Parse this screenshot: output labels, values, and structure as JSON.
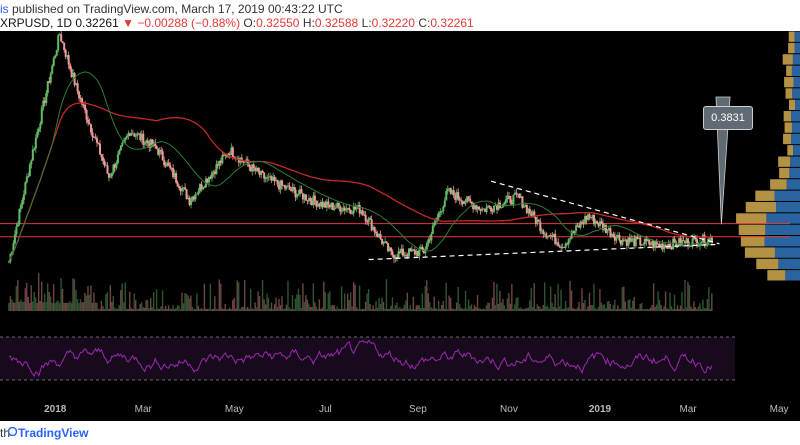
{
  "header": {
    "author": "is",
    "published_text": " published on TradingView.com, March 17, 2019 00:43:22 UTC",
    "symbol": "XRPUSD, 1D",
    "last": "0.32261",
    "change": "▼ −0.00288 (−0.88%)",
    "o_label": "O:",
    "o_value": "0.32550",
    "h_label": "H:",
    "h_value": "0.32588",
    "l_label": "L:",
    "l_value": "0.32220",
    "c_label": "C:",
    "c_value": "0.32261"
  },
  "footer": {
    "prefix": "th",
    "brand": "TradingView"
  },
  "annotation": {
    "price_label": "0.3831"
  },
  "colors": {
    "background": "#000000",
    "up": "#66bb6a",
    "down": "#ef9a9a",
    "ma_long": "#c62828",
    "ma_short": "#2e7d32",
    "rsi": "#9c27b0",
    "hline": "#e53935",
    "vp_up": "#c8a24a",
    "vp_down": "#2f6fb1"
  },
  "chart_data": {
    "type": "line",
    "title": "XRPUSD, 1D",
    "x_tick_labels": [
      "2018",
      "Mar",
      "May",
      "Jul",
      "Sep",
      "Nov",
      "2019",
      "Mar",
      "May"
    ],
    "price_series": {
      "name": "XRPUSD",
      "approximate_close": [
        {
          "x": "2017-12-01",
          "y": 0.25
        },
        {
          "x": "2017-12-15",
          "y": 0.75
        },
        {
          "x": "2018-01-04",
          "y": 3.3
        },
        {
          "x": "2018-01-15",
          "y": 1.8
        },
        {
          "x": "2018-02-06",
          "y": 0.65
        },
        {
          "x": "2018-02-20",
          "y": 1.1
        },
        {
          "x": "2018-03-10",
          "y": 0.9
        },
        {
          "x": "2018-04-01",
          "y": 0.5
        },
        {
          "x": "2018-04-28",
          "y": 0.88
        },
        {
          "x": "2018-05-20",
          "y": 0.65
        },
        {
          "x": "2018-06-10",
          "y": 0.55
        },
        {
          "x": "2018-07-01",
          "y": 0.47
        },
        {
          "x": "2018-07-25",
          "y": 0.45
        },
        {
          "x": "2018-08-14",
          "y": 0.27
        },
        {
          "x": "2018-09-05",
          "y": 0.28
        },
        {
          "x": "2018-09-21",
          "y": 0.55
        },
        {
          "x": "2018-10-15",
          "y": 0.45
        },
        {
          "x": "2018-11-07",
          "y": 0.52
        },
        {
          "x": "2018-11-25",
          "y": 0.35
        },
        {
          "x": "2018-12-07",
          "y": 0.3
        },
        {
          "x": "2018-12-24",
          "y": 0.42
        },
        {
          "x": "2019-01-15",
          "y": 0.32
        },
        {
          "x": "2019-02-10",
          "y": 0.3
        },
        {
          "x": "2019-03-17",
          "y": 0.32261
        }
      ]
    },
    "horizontal_levels": [
      0.3831,
      0.33
    ],
    "annotated_price": 0.3831,
    "indicators": [
      "moving average (long)",
      "moving average (short)",
      "volume profile",
      "volume",
      "RSI"
    ],
    "grid": false,
    "legend": "none"
  }
}
